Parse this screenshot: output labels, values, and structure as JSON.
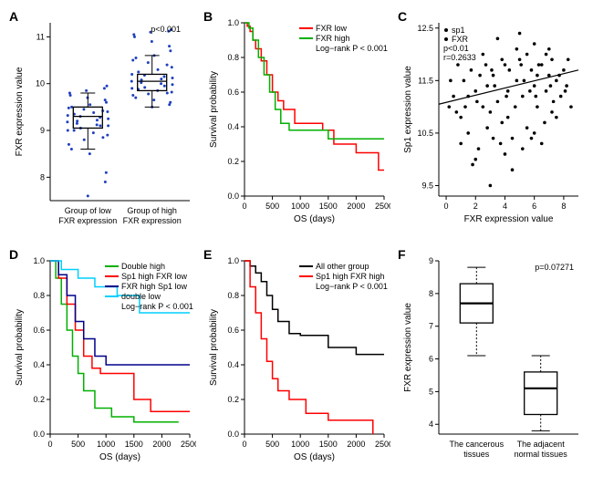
{
  "panelA": {
    "label": "A",
    "type": "boxplot-strip",
    "ylabel": "FXR expression value",
    "xcats": [
      "Group of low\nFXR expression",
      "Group of high\nFXR expression"
    ],
    "pval": "p<0.001",
    "yticks": [
      8,
      9,
      10,
      11
    ],
    "ylim": [
      7.5,
      11.3
    ],
    "dot_color": "#1f3fbf",
    "box1": {
      "min": 8.6,
      "q1": 9.05,
      "med": 9.3,
      "q3": 9.5,
      "max": 9.8
    },
    "box2": {
      "min": 9.5,
      "q1": 9.85,
      "med": 10.05,
      "q3": 10.2,
      "max": 10.6
    },
    "dots1": [
      7.6,
      7.9,
      8.1,
      8.5,
      8.6,
      8.7,
      8.8,
      8.85,
      8.9,
      8.95,
      9.0,
      9.0,
      9.05,
      9.1,
      9.1,
      9.12,
      9.15,
      9.18,
      9.2,
      9.22,
      9.25,
      9.28,
      9.3,
      9.32,
      9.35,
      9.38,
      9.4,
      9.42,
      9.45,
      9.48,
      9.5,
      9.55,
      9.6,
      9.65,
      9.7,
      9.75,
      9.8,
      9.85,
      9.9,
      9.95
    ],
    "dots2": [
      9.5,
      9.55,
      9.6,
      9.65,
      9.7,
      9.75,
      9.78,
      9.8,
      9.82,
      9.85,
      9.88,
      9.9,
      9.92,
      9.95,
      9.98,
      10.0,
      10.02,
      10.05,
      10.08,
      10.1,
      10.12,
      10.15,
      10.18,
      10.2,
      10.25,
      10.3,
      10.35,
      10.4,
      10.45,
      10.5,
      10.55,
      10.6,
      10.7,
      10.8,
      10.9,
      11.0,
      11.05,
      11.1,
      11.12,
      11.15
    ]
  },
  "panelB": {
    "label": "B",
    "type": "km",
    "ylabel": "Survival probability",
    "xlabel": "OS (days)",
    "xticks": [
      0,
      500,
      1000,
      1500,
      2000,
      2500
    ],
    "yticks": [
      0.0,
      0.2,
      0.4,
      0.6,
      0.8,
      1.0
    ],
    "xlim": [
      0,
      2500
    ],
    "ylim": [
      0,
      1
    ],
    "legend": [
      {
        "label": "FXR low",
        "color": "#ff0000"
      },
      {
        "label": "FXR high",
        "color": "#00b000"
      }
    ],
    "logrank": "Log−rank P < 0.001",
    "curve_low": [
      [
        0,
        1.0
      ],
      [
        50,
        0.98
      ],
      [
        100,
        0.95
      ],
      [
        150,
        0.9
      ],
      [
        200,
        0.85
      ],
      [
        300,
        0.78
      ],
      [
        400,
        0.7
      ],
      [
        500,
        0.6
      ],
      [
        600,
        0.55
      ],
      [
        700,
        0.5
      ],
      [
        900,
        0.42
      ],
      [
        1100,
        0.42
      ],
      [
        1400,
        0.38
      ],
      [
        1600,
        0.3
      ],
      [
        2000,
        0.25
      ],
      [
        2400,
        0.15
      ],
      [
        2500,
        0.15
      ]
    ],
    "curve_high": [
      [
        0,
        1.0
      ],
      [
        80,
        0.97
      ],
      [
        150,
        0.9
      ],
      [
        250,
        0.8
      ],
      [
        350,
        0.7
      ],
      [
        450,
        0.6
      ],
      [
        550,
        0.5
      ],
      [
        650,
        0.42
      ],
      [
        800,
        0.38
      ],
      [
        1000,
        0.38
      ],
      [
        1200,
        0.38
      ],
      [
        1500,
        0.33
      ],
      [
        2000,
        0.33
      ],
      [
        2500,
        0.33
      ]
    ]
  },
  "panelC": {
    "label": "C",
    "type": "scatter",
    "ylabel": "Sp1 expression value",
    "xlabel": "FXR expression value",
    "xticks": [
      0,
      2,
      4,
      6,
      8
    ],
    "yticks": [
      9.5,
      10.5,
      11.5,
      12.5
    ],
    "xlim": [
      -0.5,
      9
    ],
    "ylim": [
      9.3,
      12.6
    ],
    "legend_items": [
      "sp1",
      "FXR"
    ],
    "pval": "p<0.01",
    "rval": "r=0.2633",
    "reg_line": {
      "x1": -0.5,
      "y1": 11.05,
      "x2": 9,
      "y2": 11.7
    },
    "points": [
      [
        0.5,
        11.2
      ],
      [
        1,
        10.8
      ],
      [
        1.2,
        11.5
      ],
      [
        1.5,
        10.5
      ],
      [
        2,
        11.3
      ],
      [
        2.2,
        10.2
      ],
      [
        2.5,
        11.0
      ],
      [
        2.8,
        11.4
      ],
      [
        3,
        10.9
      ],
      [
        3.2,
        11.6
      ],
      [
        3.5,
        11.1
      ],
      [
        3.8,
        10.7
      ],
      [
        4,
        11.8
      ],
      [
        4.2,
        11.3
      ],
      [
        4.5,
        10.4
      ],
      [
        4.8,
        11.5
      ],
      [
        5,
        11.9
      ],
      [
        5.2,
        11.2
      ],
      [
        5.5,
        10.6
      ],
      [
        5.8,
        11.7
      ],
      [
        6,
        11.4
      ],
      [
        6.2,
        11.0
      ],
      [
        6.5,
        11.8
      ],
      [
        6.8,
        11.3
      ],
      [
        7,
        11.6
      ],
      [
        7.2,
        10.9
      ],
      [
        7.5,
        11.5
      ],
      [
        7.8,
        11.2
      ],
      [
        8,
        11.7
      ],
      [
        8.2,
        11.4
      ],
      [
        3,
        9.5
      ],
      [
        4.5,
        9.8
      ],
      [
        5,
        12.4
      ],
      [
        6,
        12.2
      ],
      [
        2.5,
        12.0
      ],
      [
        1.8,
        9.9
      ],
      [
        6.5,
        10.3
      ],
      [
        7,
        12.1
      ],
      [
        0.8,
        11.8
      ],
      [
        8.5,
        11.0
      ],
      [
        3.5,
        12.3
      ],
      [
        4,
        10.1
      ],
      [
        5.5,
        12.0
      ],
      [
        2,
        10.0
      ],
      [
        6,
        10.5
      ],
      [
        7.5,
        10.8
      ],
      [
        1,
        10.3
      ],
      [
        3.2,
        10.4
      ],
      [
        4.8,
        12.1
      ],
      [
        5.2,
        10.2
      ],
      [
        6.8,
        12.0
      ],
      [
        7.2,
        11.9
      ],
      [
        0.3,
        11.5
      ],
      [
        8.3,
        11.9
      ],
      [
        2.8,
        10.6
      ],
      [
        3.8,
        11.9
      ],
      [
        4.2,
        10.8
      ],
      [
        5.8,
        10.4
      ],
      [
        6.2,
        11.6
      ],
      [
        1.5,
        11.2
      ],
      [
        2.3,
        11.6
      ],
      [
        3.3,
        11.4
      ],
      [
        4.3,
        11.7
      ],
      [
        5.3,
        11.5
      ],
      [
        6.3,
        11.8
      ],
      [
        7.3,
        11.1
      ],
      [
        0.7,
        10.9
      ],
      [
        1.7,
        11.7
      ],
      [
        2.7,
        11.8
      ],
      [
        3.7,
        10.3
      ],
      [
        4.7,
        11.0
      ],
      [
        5.7,
        11.3
      ],
      [
        6.7,
        10.7
      ],
      [
        7.7,
        11.6
      ],
      [
        8.1,
        11.3
      ],
      [
        0.2,
        11.0
      ],
      [
        1.3,
        11.0
      ],
      [
        2.1,
        11.1
      ],
      [
        3.1,
        11.7
      ],
      [
        4.1,
        11.2
      ],
      [
        5.1,
        11.8
      ],
      [
        6.1,
        11.2
      ],
      [
        7.1,
        11.4
      ]
    ]
  },
  "panelD": {
    "label": "D",
    "type": "km",
    "ylabel": "Survival probability",
    "xlabel": "OS (days)",
    "xticks": [
      0,
      500,
      1000,
      1500,
      2000,
      2500
    ],
    "yticks": [
      0.0,
      0.2,
      0.4,
      0.6,
      0.8,
      1.0
    ],
    "xlim": [
      0,
      2500
    ],
    "ylim": [
      0,
      1
    ],
    "legend": [
      {
        "label": "Double high",
        "color": "#00b000"
      },
      {
        "label": "Sp1 high FXR  low",
        "color": "#ff0000"
      },
      {
        "label": "FXR high Sp1 low",
        "color": "#00008b"
      },
      {
        "label": "double low",
        "color": "#00cfff"
      }
    ],
    "logrank": "Log−rank P < 0.001",
    "curves": {
      "dh": [
        [
          0,
          1.0
        ],
        [
          100,
          0.9
        ],
        [
          200,
          0.75
        ],
        [
          300,
          0.6
        ],
        [
          400,
          0.45
        ],
        [
          500,
          0.35
        ],
        [
          600,
          0.25
        ],
        [
          800,
          0.15
        ],
        [
          1100,
          0.1
        ],
        [
          1500,
          0.07
        ],
        [
          2300,
          0.07
        ]
      ],
      "shfl": [
        [
          0,
          1.0
        ],
        [
          150,
          0.9
        ],
        [
          300,
          0.75
        ],
        [
          450,
          0.6
        ],
        [
          600,
          0.45
        ],
        [
          750,
          0.38
        ],
        [
          900,
          0.35
        ],
        [
          1500,
          0.2
        ],
        [
          1800,
          0.13
        ],
        [
          2500,
          0.13
        ]
      ],
      "fhsl": [
        [
          0,
          1.0
        ],
        [
          150,
          0.92
        ],
        [
          300,
          0.8
        ],
        [
          450,
          0.65
        ],
        [
          600,
          0.55
        ],
        [
          800,
          0.45
        ],
        [
          1000,
          0.4
        ],
        [
          1500,
          0.4
        ],
        [
          2500,
          0.4
        ]
      ],
      "dl": [
        [
          0,
          1.0
        ],
        [
          200,
          0.95
        ],
        [
          500,
          0.9
        ],
        [
          800,
          0.85
        ],
        [
          1200,
          0.8
        ],
        [
          1600,
          0.7
        ],
        [
          2000,
          0.7
        ],
        [
          2500,
          0.7
        ]
      ]
    }
  },
  "panelE": {
    "label": "E",
    "type": "km",
    "ylabel": "Survival probability",
    "xlabel": "OS (days)",
    "xticks": [
      0,
      500,
      1000,
      1500,
      2000,
      2500
    ],
    "yticks": [
      0.0,
      0.2,
      0.4,
      0.6,
      0.8,
      1.0
    ],
    "xlim": [
      0,
      2500
    ],
    "ylim": [
      0,
      1
    ],
    "legend": [
      {
        "label": "All other group",
        "color": "#000000"
      },
      {
        "label": "Sp1 high  FXR high",
        "color": "#ff0000"
      }
    ],
    "logrank": "Log−rank P < 0.001",
    "curves": {
      "other": [
        [
          0,
          1.0
        ],
        [
          100,
          0.97
        ],
        [
          200,
          0.93
        ],
        [
          300,
          0.88
        ],
        [
          400,
          0.8
        ],
        [
          500,
          0.72
        ],
        [
          600,
          0.65
        ],
        [
          800,
          0.58
        ],
        [
          1000,
          0.57
        ],
        [
          1500,
          0.5
        ],
        [
          2000,
          0.46
        ],
        [
          2500,
          0.46
        ]
      ],
      "shfh": [
        [
          0,
          1.0
        ],
        [
          100,
          0.85
        ],
        [
          200,
          0.7
        ],
        [
          300,
          0.55
        ],
        [
          400,
          0.42
        ],
        [
          500,
          0.32
        ],
        [
          600,
          0.25
        ],
        [
          800,
          0.2
        ],
        [
          1100,
          0.12
        ],
        [
          1500,
          0.08
        ],
        [
          2300,
          0.0
        ]
      ]
    }
  },
  "panelF": {
    "label": "F",
    "type": "boxplot",
    "ylabel": "FXR expression value",
    "xcats": [
      "The cancerous\ntissues",
      "The adjacent\nnormal tissues"
    ],
    "pval": "p=0.07271",
    "yticks": [
      4,
      5,
      6,
      7,
      8,
      9
    ],
    "ylim": [
      3.7,
      9
    ],
    "box1": {
      "min": 6.1,
      "q1": 7.1,
      "med": 7.7,
      "q3": 8.3,
      "max": 8.8
    },
    "box2": {
      "min": 3.8,
      "q1": 4.3,
      "med": 5.1,
      "q3": 5.6,
      "max": 6.1
    }
  }
}
